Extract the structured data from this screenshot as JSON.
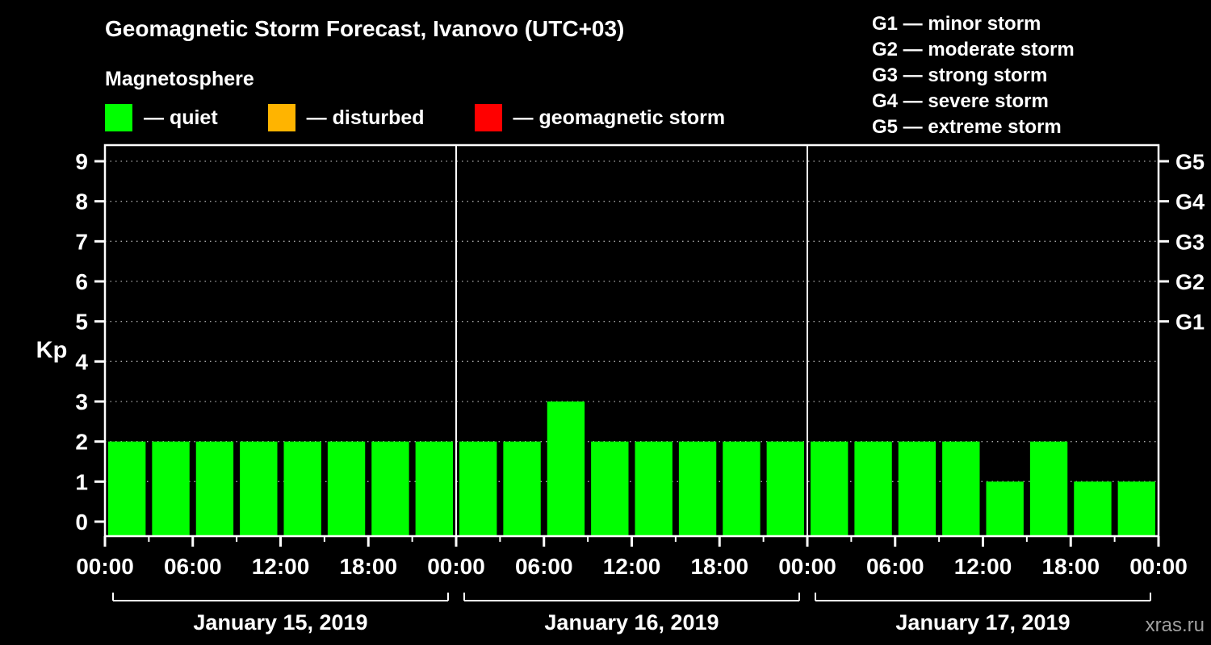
{
  "title": "Geomagnetic Storm Forecast, Ivanovo (UTC+03)",
  "subtitle": "Magnetosphere",
  "legend": {
    "items": [
      {
        "label": "— quiet",
        "color": "#00ff00"
      },
      {
        "label": "— disturbed",
        "color": "#ffb400"
      },
      {
        "label": "— geomagnetic storm",
        "color": "#ff0000"
      }
    ]
  },
  "storm_scale": {
    "items": [
      {
        "label": "G1 — minor storm"
      },
      {
        "label": "G2 — moderate storm"
      },
      {
        "label": "G3 — strong storm"
      },
      {
        "label": "G4 — severe storm"
      },
      {
        "label": "G5 — extreme storm"
      }
    ]
  },
  "watermark": "xras.ru",
  "chart_data": {
    "type": "bar",
    "ylabel": "Kp",
    "ylim": [
      0,
      9.4
    ],
    "yticks": [
      0,
      1,
      2,
      3,
      4,
      5,
      6,
      7,
      8,
      9
    ],
    "right_axis_labels": [
      {
        "label": "G1",
        "kp": 5
      },
      {
        "label": "G2",
        "kp": 6
      },
      {
        "label": "G3",
        "kp": 7
      },
      {
        "label": "G4",
        "kp": 8
      },
      {
        "label": "G5",
        "kp": 9
      }
    ],
    "colors": {
      "quiet": "#00ff00",
      "disturbed": "#ffb400",
      "storm": "#ff0000"
    },
    "thresholds": {
      "disturbed_min": 4,
      "storm_min": 5
    },
    "grid": "dotted-horizontal",
    "x_tick_labels_per_day": [
      "00:00",
      "06:00",
      "12:00",
      "18:00"
    ],
    "x_final_label": "00:00",
    "days": [
      {
        "date": "January 15, 2019",
        "values": [
          2,
          2,
          2,
          2,
          2,
          2,
          2,
          2
        ]
      },
      {
        "date": "January 16, 2019",
        "values": [
          2,
          2,
          3,
          2,
          2,
          2,
          2,
          2
        ]
      },
      {
        "date": "January 17, 2019",
        "values": [
          2,
          2,
          2,
          2,
          1,
          2,
          1,
          1
        ]
      }
    ]
  }
}
